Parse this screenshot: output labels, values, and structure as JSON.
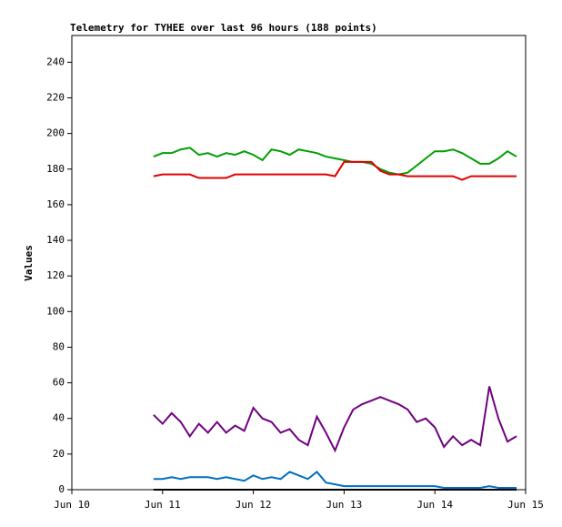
{
  "chart_data": {
    "type": "line",
    "title": "Telemetry for TYHEE over last 96 hours (188 points)",
    "y_label": "Values",
    "xlim": [
      10,
      15
    ],
    "xticks": [
      {
        "value": 10,
        "label": "Jun 10"
      },
      {
        "value": 11,
        "label": "Jun 11"
      },
      {
        "value": 12,
        "label": "Jun 12"
      },
      {
        "value": 13,
        "label": "Jun 13"
      },
      {
        "value": 14,
        "label": "Jun 14"
      },
      {
        "value": 15,
        "label": "Jun 15"
      }
    ],
    "ylim": [
      0,
      255
    ],
    "yticks": [
      0,
      20,
      40,
      60,
      80,
      100,
      120,
      140,
      160,
      180,
      200,
      220,
      240
    ],
    "grid": false,
    "x": [
      10.9,
      11.0,
      11.1,
      11.2,
      11.3,
      11.4,
      11.5,
      11.6,
      11.7,
      11.8,
      11.9,
      12.0,
      12.1,
      12.2,
      12.3,
      12.4,
      12.5,
      12.6,
      12.7,
      12.8,
      12.9,
      13.0,
      13.1,
      13.2,
      13.3,
      13.4,
      13.5,
      13.6,
      13.7,
      13.8,
      13.9,
      14.0,
      14.1,
      14.2,
      14.3,
      14.4,
      14.5,
      14.6,
      14.7,
      14.8,
      14.9
    ],
    "series": [
      {
        "color": "#00a000",
        "values": [
          187,
          189,
          189,
          191,
          192,
          188,
          189,
          187,
          189,
          188,
          190,
          188,
          185,
          191,
          190,
          188,
          191,
          190,
          189,
          187,
          186,
          185,
          184,
          184,
          183,
          180,
          178,
          177,
          178,
          182,
          186,
          190,
          190,
          191,
          189,
          186,
          183,
          183,
          186,
          190,
          187
        ]
      },
      {
        "color": "#e00000",
        "values": [
          176,
          177,
          177,
          177,
          177,
          175,
          175,
          175,
          175,
          177,
          177,
          177,
          177,
          177,
          177,
          177,
          177,
          177,
          177,
          177,
          176,
          184,
          184,
          184,
          184,
          179,
          177,
          177,
          176,
          176,
          176,
          176,
          176,
          176,
          174,
          176,
          176,
          176,
          176,
          176,
          176
        ]
      },
      {
        "color": "#700080",
        "values": [
          42,
          37,
          43,
          38,
          30,
          37,
          32,
          38,
          32,
          36,
          33,
          46,
          40,
          38,
          32,
          34,
          28,
          25,
          41,
          32,
          22,
          35,
          45,
          48,
          50,
          52,
          50,
          48,
          45,
          38,
          40,
          35,
          24,
          30,
          25,
          28,
          25,
          58,
          40,
          27,
          30
        ]
      },
      {
        "color": "#0070c0",
        "values": [
          6,
          6,
          7,
          6,
          7,
          7,
          7,
          6,
          7,
          6,
          5,
          8,
          6,
          7,
          6,
          10,
          8,
          6,
          10,
          4,
          3,
          2,
          2,
          2,
          2,
          2,
          2,
          2,
          2,
          2,
          2,
          2,
          1,
          1,
          1,
          1,
          1,
          2,
          1,
          1,
          1
        ]
      },
      {
        "color": "#000000",
        "values": [
          0,
          0,
          0,
          0,
          0,
          0,
          0,
          0,
          0,
          0,
          0,
          0,
          0,
          0,
          0,
          0,
          0,
          0,
          0,
          0,
          0,
          0,
          0,
          0,
          0,
          0,
          0,
          0,
          0,
          0,
          0,
          0,
          0,
          0,
          0,
          0,
          0,
          0,
          0,
          0,
          0
        ]
      }
    ]
  }
}
